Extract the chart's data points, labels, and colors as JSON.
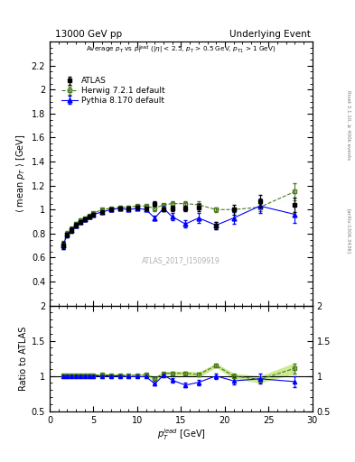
{
  "title_left": "13000 GeV pp",
  "title_right": "Underlying Event",
  "right_label_top": "Rivet 3.1.10, ≥ 400k events",
  "right_label_bottom": "[arXiv:1306.3436]",
  "watermark": "ATLAS_2017_I1509919",
  "ylim_main": [
    0.2,
    2.4
  ],
  "ylim_ratio": [
    0.5,
    2.0
  ],
  "xlim": [
    0,
    30
  ],
  "atlas_x": [
    1.5,
    2.0,
    2.5,
    3.0,
    3.5,
    4.0,
    4.5,
    5.0,
    6.0,
    7.0,
    8.0,
    9.0,
    10.0,
    11.0,
    12.0,
    13.0,
    14.0,
    15.5,
    17.0,
    19.0,
    21.0,
    24.0,
    28.0
  ],
  "atlas_y": [
    0.7,
    0.79,
    0.83,
    0.87,
    0.9,
    0.92,
    0.94,
    0.96,
    0.98,
    1.0,
    1.01,
    1.01,
    1.02,
    1.01,
    1.05,
    1.0,
    1.01,
    1.01,
    1.02,
    0.87,
    1.0,
    1.07,
    1.04
  ],
  "atlas_yerr": [
    0.03,
    0.02,
    0.02,
    0.02,
    0.015,
    0.015,
    0.01,
    0.01,
    0.01,
    0.01,
    0.01,
    0.01,
    0.01,
    0.01,
    0.02,
    0.01,
    0.02,
    0.02,
    0.03,
    0.03,
    0.04,
    0.05,
    0.06
  ],
  "herwig_x": [
    1.5,
    2.0,
    2.5,
    3.0,
    3.5,
    4.0,
    4.5,
    5.0,
    6.0,
    7.0,
    8.0,
    9.0,
    10.0,
    11.0,
    12.0,
    13.0,
    14.0,
    15.5,
    17.0,
    19.0,
    21.0,
    24.0,
    28.0
  ],
  "herwig_y": [
    0.71,
    0.8,
    0.84,
    0.88,
    0.91,
    0.93,
    0.95,
    0.97,
    1.0,
    1.01,
    1.02,
    1.02,
    1.03,
    1.03,
    1.01,
    1.04,
    1.05,
    1.05,
    1.04,
    1.0,
    1.0,
    1.02,
    1.15
  ],
  "herwig_yerr": [
    0.03,
    0.02,
    0.02,
    0.02,
    0.015,
    0.015,
    0.01,
    0.01,
    0.01,
    0.01,
    0.01,
    0.01,
    0.01,
    0.01,
    0.02,
    0.01,
    0.02,
    0.02,
    0.03,
    0.02,
    0.02,
    0.03,
    0.07
  ],
  "pythia_x": [
    1.5,
    2.0,
    2.5,
    3.0,
    3.5,
    4.0,
    4.5,
    5.0,
    6.0,
    7.0,
    8.0,
    9.0,
    10.0,
    11.0,
    12.0,
    13.0,
    14.0,
    15.5,
    17.0,
    19.0,
    21.0,
    24.0,
    28.0
  ],
  "pythia_y": [
    0.7,
    0.79,
    0.83,
    0.87,
    0.9,
    0.92,
    0.94,
    0.96,
    0.98,
    1.0,
    1.01,
    1.0,
    1.01,
    1.0,
    0.93,
    1.01,
    0.94,
    0.88,
    0.93,
    0.87,
    0.93,
    1.03,
    0.96
  ],
  "pythia_yerr": [
    0.03,
    0.02,
    0.02,
    0.02,
    0.015,
    0.015,
    0.01,
    0.01,
    0.01,
    0.01,
    0.01,
    0.01,
    0.01,
    0.01,
    0.02,
    0.02,
    0.03,
    0.03,
    0.04,
    0.03,
    0.05,
    0.06,
    0.07
  ],
  "atlas_color": "black",
  "herwig_color": "#4a7a1e",
  "pythia_color": "blue",
  "ratio_herwig_band_color": "#c8e88a",
  "atlas_marker": "s",
  "herwig_marker": "s",
  "pythia_marker": "^",
  "herwig_ratio_y": [
    1.01,
    1.01,
    1.01,
    1.01,
    1.01,
    1.01,
    1.01,
    1.01,
    1.02,
    1.01,
    1.01,
    1.01,
    1.01,
    1.02,
    0.96,
    1.04,
    1.04,
    1.04,
    1.02,
    1.15,
    1.0,
    0.95,
    1.11
  ],
  "herwig_ratio_yerr": [
    0.01,
    0.01,
    0.01,
    0.01,
    0.01,
    0.01,
    0.01,
    0.01,
    0.01,
    0.01,
    0.01,
    0.01,
    0.01,
    0.01,
    0.02,
    0.01,
    0.02,
    0.02,
    0.03,
    0.02,
    0.03,
    0.04,
    0.07
  ],
  "pythia_ratio_y": [
    1.0,
    1.0,
    1.0,
    1.0,
    1.0,
    1.0,
    1.0,
    1.0,
    1.0,
    1.0,
    1.0,
    0.99,
    0.99,
    0.99,
    0.89,
    1.01,
    0.94,
    0.87,
    0.91,
    1.0,
    0.93,
    0.96,
    0.92
  ],
  "pythia_ratio_yerr": [
    0.01,
    0.01,
    0.01,
    0.01,
    0.01,
    0.01,
    0.01,
    0.01,
    0.01,
    0.01,
    0.01,
    0.01,
    0.01,
    0.01,
    0.02,
    0.02,
    0.03,
    0.03,
    0.04,
    0.04,
    0.05,
    0.07,
    0.08
  ]
}
